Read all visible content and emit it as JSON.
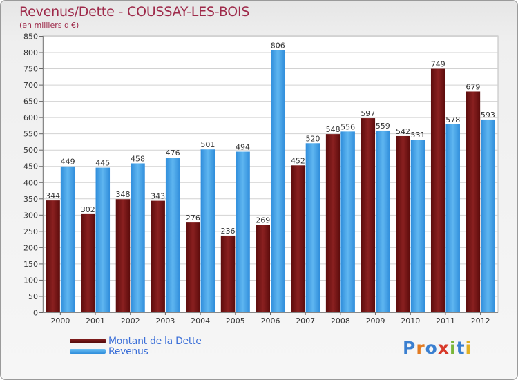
{
  "chart_data": {
    "type": "bar",
    "title": "Revenus/Dette - COUSSAY-LES-BOIS",
    "subtitle": "(en milliers d'€)",
    "categories": [
      "2000",
      "2001",
      "2002",
      "2003",
      "2004",
      "2005",
      "2006",
      "2007",
      "2008",
      "2009",
      "2010",
      "2011",
      "2012"
    ],
    "series": [
      {
        "name": "Montant de la Dette",
        "color": "#7a1a1a",
        "values": [
          344,
          302,
          348,
          343,
          276,
          236,
          269,
          452,
          548,
          597,
          542,
          749,
          679
        ]
      },
      {
        "name": "Revenus",
        "color": "#3a9be0",
        "values": [
          449,
          445,
          458,
          476,
          501,
          494,
          806,
          520,
          556,
          559,
          531,
          578,
          593
        ]
      }
    ],
    "ylim": [
      0,
      850
    ],
    "ytick_step": 50,
    "grid": true,
    "legend_position": "bottom-left"
  },
  "logo": {
    "text": "Proxiti",
    "letters": [
      {
        "ch": "P",
        "color": "#3a7fd0"
      },
      {
        "ch": "r",
        "color": "#e27b22"
      },
      {
        "ch": "o",
        "color": "#3a7fd0"
      },
      {
        "ch": "x",
        "color": "#d83a2a"
      },
      {
        "ch": "i",
        "color": "#7ab63a"
      },
      {
        "ch": "t",
        "color": "#3a7fd0"
      },
      {
        "ch": "i",
        "color": "#e2b022"
      }
    ]
  }
}
